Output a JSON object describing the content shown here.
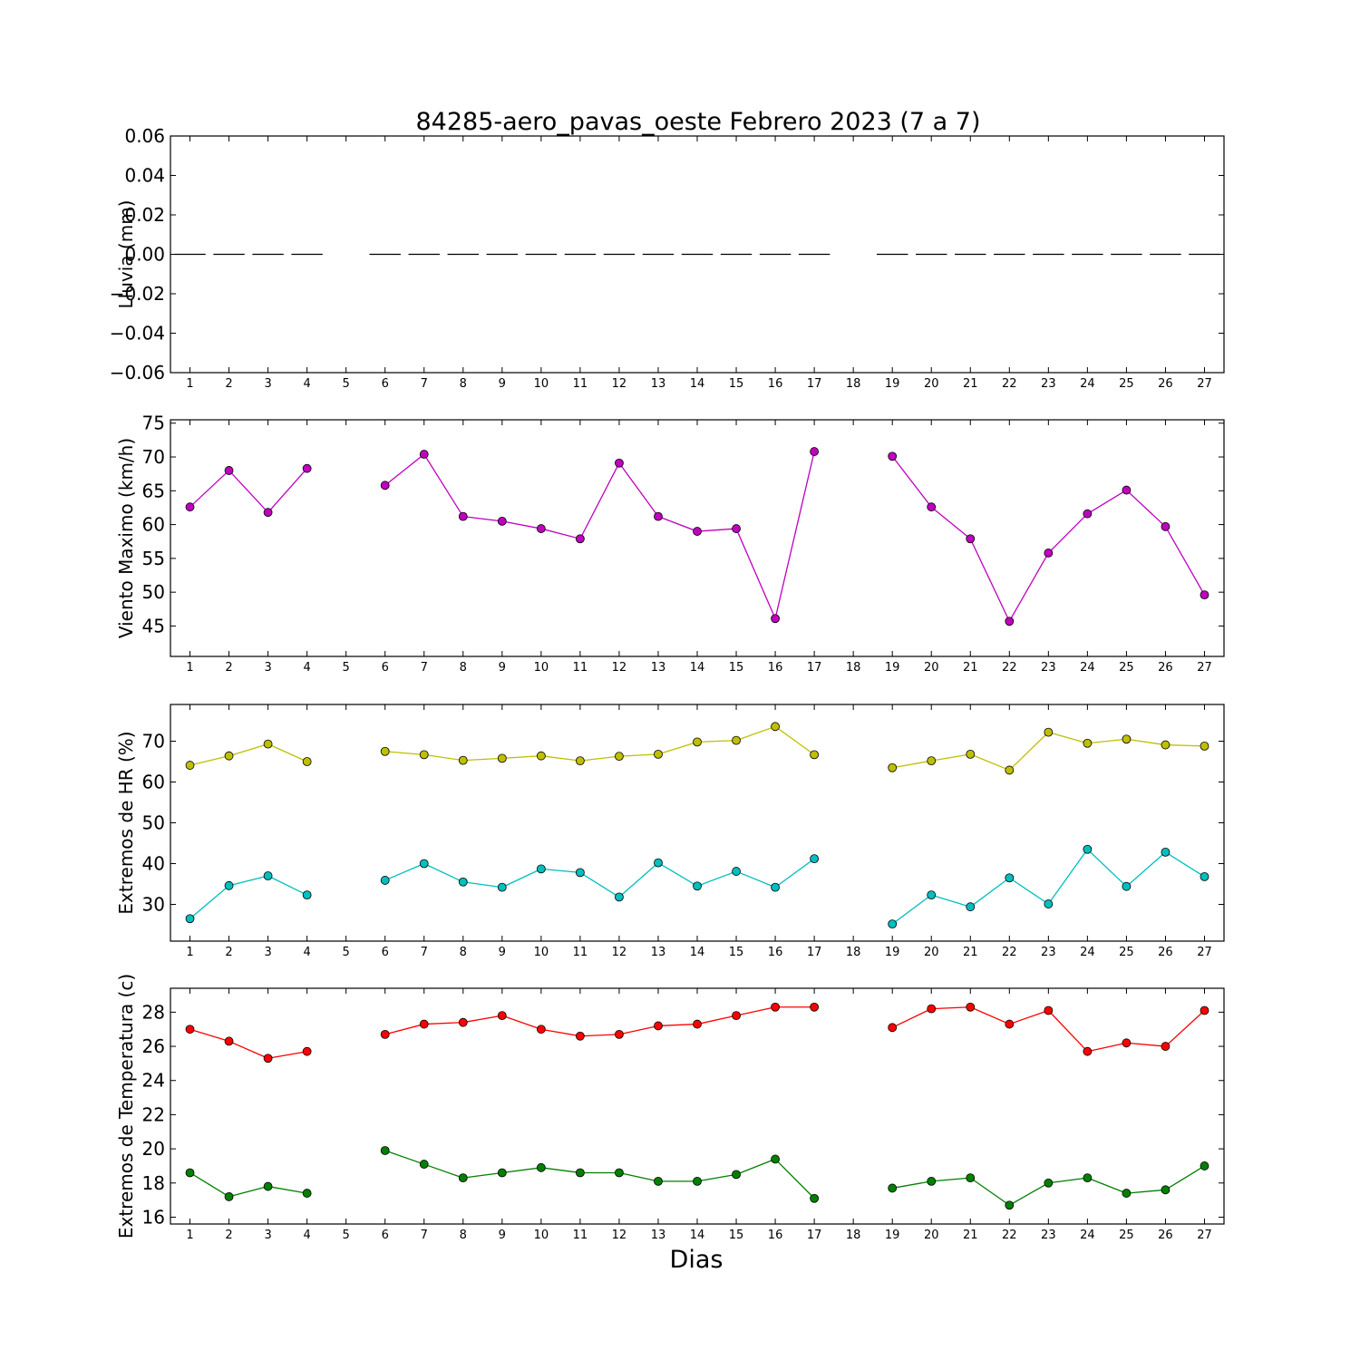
{
  "chart_data": [
    {
      "type": "line",
      "title": "84285-aero_pavas_oeste Febrero 2023  (7 a 7)",
      "ylabel": "Lluvia (mm)",
      "xlabel": "",
      "ylim": [
        -0.06,
        0.06
      ],
      "yticks": [
        0.06,
        0.04,
        0.02,
        0.0,
        -0.02,
        -0.04,
        -0.06
      ],
      "ytick_labels": [
        "0.06",
        "0.04",
        "0.02",
        "0.00",
        "−0.02",
        "−0.04",
        "−0.06"
      ],
      "x_ticks": [
        1,
        2,
        3,
        4,
        5,
        6,
        7,
        8,
        9,
        10,
        11,
        12,
        13,
        14,
        15,
        16,
        17,
        18,
        19,
        20,
        21,
        22,
        23,
        24,
        25,
        26,
        27
      ],
      "grid": false,
      "series": [
        {
          "color": "#000000",
          "style": "bar-segments",
          "x": [
            1,
            2,
            3,
            4,
            6,
            7,
            8,
            9,
            10,
            11,
            12,
            13,
            14,
            15,
            16,
            17,
            19,
            20,
            21,
            22,
            23,
            24,
            25,
            26,
            27
          ],
          "values": [
            0,
            0,
            0,
            0,
            0,
            0,
            0,
            0,
            0,
            0,
            0,
            0,
            0,
            0,
            0,
            0,
            0,
            0,
            0,
            0,
            0,
            0,
            0,
            0,
            0
          ]
        }
      ]
    },
    {
      "type": "line",
      "ylabel": "Viento Maximo (km/h)",
      "ylim": [
        40.5,
        75.5
      ],
      "yticks": [
        75,
        70,
        65,
        60,
        55,
        50,
        45
      ],
      "ytick_labels": [
        "75",
        "70",
        "65",
        "60",
        "55",
        "50",
        "45"
      ],
      "x_ticks": [
        1,
        2,
        3,
        4,
        5,
        6,
        7,
        8,
        9,
        10,
        11,
        12,
        13,
        14,
        15,
        16,
        17,
        18,
        19,
        20,
        21,
        22,
        23,
        24,
        25,
        26,
        27
      ],
      "grid": false,
      "series": [
        {
          "color": "#bf00bf",
          "x": [
            1,
            2,
            3,
            4,
            6,
            7,
            8,
            9,
            10,
            11,
            12,
            13,
            14,
            15,
            16,
            17,
            19,
            20,
            21,
            22,
            23,
            24,
            25,
            26,
            27
          ],
          "values": [
            62.6,
            68.0,
            61.8,
            68.3,
            65.8,
            70.4,
            61.2,
            60.5,
            59.4,
            57.9,
            69.1,
            61.2,
            59.0,
            59.4,
            46.1,
            70.8,
            70.1,
            62.6,
            57.9,
            45.7,
            55.8,
            61.6,
            65.1,
            59.7,
            49.6
          ]
        }
      ]
    },
    {
      "type": "line",
      "ylabel": "Extremos de HR (%)",
      "ylim": [
        21,
        79
      ],
      "yticks": [
        70,
        60,
        50,
        40,
        30
      ],
      "ytick_labels": [
        "70",
        "60",
        "50",
        "40",
        "30"
      ],
      "x_ticks": [
        1,
        2,
        3,
        4,
        5,
        6,
        7,
        8,
        9,
        10,
        11,
        12,
        13,
        14,
        15,
        16,
        17,
        18,
        19,
        20,
        21,
        22,
        23,
        24,
        25,
        26,
        27
      ],
      "grid": false,
      "series": [
        {
          "color": "#bfbf00",
          "x": [
            1,
            2,
            3,
            4,
            6,
            7,
            8,
            9,
            10,
            11,
            12,
            13,
            14,
            15,
            16,
            17,
            19,
            20,
            21,
            22,
            23,
            24,
            25,
            26,
            27
          ],
          "values": [
            64.1,
            66.4,
            69.3,
            65.0,
            67.5,
            66.7,
            65.3,
            65.8,
            66.4,
            65.2,
            66.3,
            66.8,
            69.8,
            70.2,
            73.6,
            66.7,
            63.5,
            65.2,
            66.8,
            62.9,
            72.2,
            69.5,
            70.5,
            69.1,
            68.8
          ]
        },
        {
          "color": "#00bfbf",
          "x": [
            1,
            2,
            3,
            4,
            6,
            7,
            8,
            9,
            10,
            11,
            12,
            13,
            14,
            15,
            16,
            17,
            19,
            20,
            21,
            22,
            23,
            24,
            25,
            26,
            27
          ],
          "values": [
            26.5,
            34.6,
            37.0,
            32.3,
            35.9,
            40.0,
            35.5,
            34.2,
            38.7,
            37.8,
            31.8,
            40.2,
            34.5,
            38.1,
            34.2,
            41.2,
            25.2,
            32.3,
            29.4,
            36.5,
            30.1,
            43.5,
            34.4,
            42.8,
            36.8
          ]
        }
      ]
    },
    {
      "type": "line",
      "ylabel": "Extremos de Temperatura (c)",
      "xlabel": "Dias",
      "ylim": [
        15.6,
        29.4
      ],
      "yticks": [
        28,
        26,
        24,
        22,
        20,
        18,
        16
      ],
      "ytick_labels": [
        "28",
        "26",
        "24",
        "22",
        "20",
        "18",
        "16"
      ],
      "x_ticks": [
        1,
        2,
        3,
        4,
        5,
        6,
        7,
        8,
        9,
        10,
        11,
        12,
        13,
        14,
        15,
        16,
        17,
        18,
        19,
        20,
        21,
        22,
        23,
        24,
        25,
        26,
        27
      ],
      "grid": false,
      "series": [
        {
          "color": "#ff0000",
          "x": [
            1,
            2,
            3,
            4,
            6,
            7,
            8,
            9,
            10,
            11,
            12,
            13,
            14,
            15,
            16,
            17,
            19,
            20,
            21,
            22,
            23,
            24,
            25,
            26,
            27
          ],
          "values": [
            27.0,
            26.3,
            25.3,
            25.7,
            26.7,
            27.3,
            27.4,
            27.8,
            27.0,
            26.6,
            26.7,
            27.2,
            27.3,
            27.8,
            28.3,
            28.3,
            27.1,
            28.2,
            28.3,
            27.3,
            28.1,
            25.7,
            26.2,
            26.0,
            28.1
          ]
        },
        {
          "color": "#008000",
          "x": [
            1,
            2,
            3,
            4,
            6,
            7,
            8,
            9,
            10,
            11,
            12,
            13,
            14,
            15,
            16,
            17,
            19,
            20,
            21,
            22,
            23,
            24,
            25,
            26,
            27
          ],
          "values": [
            18.6,
            17.2,
            17.8,
            17.4,
            19.9,
            19.1,
            18.3,
            18.6,
            18.9,
            18.6,
            18.6,
            18.1,
            18.1,
            18.5,
            19.4,
            17.1,
            17.7,
            18.1,
            18.3,
            16.7,
            18.0,
            18.3,
            17.4,
            17.6,
            19.0
          ]
        }
      ]
    }
  ]
}
